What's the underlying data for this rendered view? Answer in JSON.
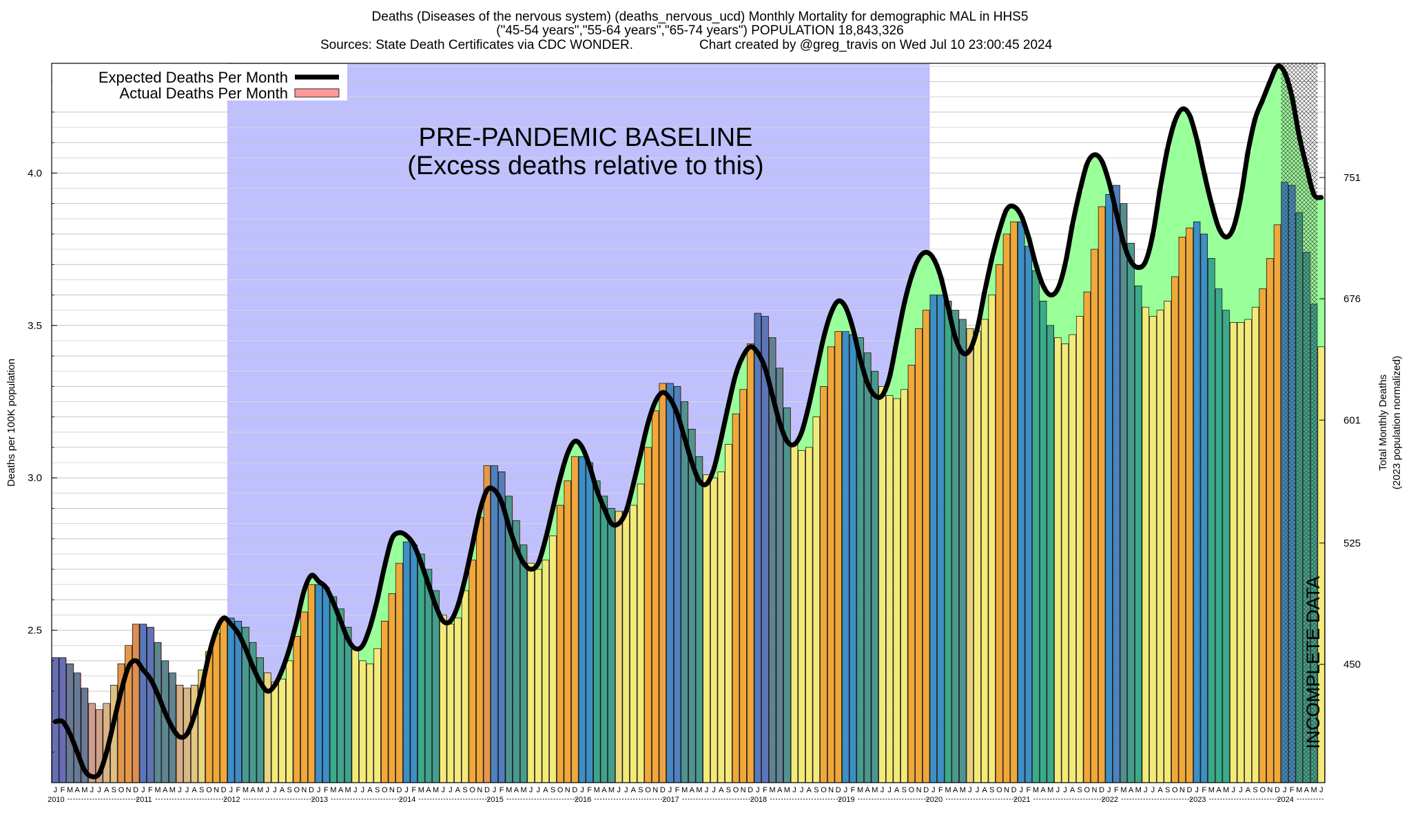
{
  "title": {
    "line1": "Deaths (Diseases of the nervous system) (deaths_nervous_ucd) Monthly Mortality for demographic MAL in HHS5",
    "line2": "(\"45-54 years\",\"55-64 years\",\"65-74 years\") POPULATION 18,843,326",
    "line3_left": "Sources: State Death Certificates via CDC WONDER.",
    "line3_right": "Chart created by @greg_travis on Wed Jul 10 23:00:45 2024"
  },
  "legend": {
    "expected": "Expected Deaths Per Month",
    "actual": "Actual Deaths Per Month"
  },
  "annotations": {
    "baseline_line1": "PRE-PANDEMIC BASELINE",
    "baseline_line2": "(Excess deaths relative to this)",
    "incomplete": "INCOMPLETE DATA"
  },
  "axes": {
    "ylabel_left": "Deaths per 100K population",
    "ylabel_right_line1": "Total Monthly Deaths",
    "ylabel_right_line2": "(2023 population normalized)",
    "yticks_left": [
      "2.5",
      "3.0",
      "3.5",
      "4.0"
    ],
    "yticks_right": [
      "450",
      "525",
      "601",
      "676",
      "751"
    ]
  },
  "colors": {
    "baseline_region": "#c0c0ff",
    "excess_fill": "#99ff99",
    "deficit_fill": "#ff9999",
    "expected_line": "#000000",
    "winter_bar": "#3d8fc4",
    "spring_bar": "#3aaa8a",
    "summer_bar": "#f4ea7a",
    "fall_bar": "#f0a83a"
  },
  "chart_data": {
    "type": "bar",
    "title": "Deaths (Diseases of the nervous system) (deaths_nervous_ucd) Monthly Mortality for demographic MAL in HHS5",
    "xlabel": "",
    "ylabel": "Deaths per 100K population",
    "ylim": [
      2.0,
      4.36
    ],
    "y2label": "Total Monthly Deaths (2023 population normalized)",
    "y2ticks": [
      450,
      525,
      601,
      676,
      751
    ],
    "grid": true,
    "legend_position": "top-left",
    "x_start": "2010-01",
    "month_labels": [
      "J",
      "F",
      "M",
      "A",
      "M",
      "J",
      "J",
      "A",
      "S",
      "O",
      "N",
      "D"
    ],
    "years": [
      "2010",
      "2011",
      "2012",
      "2013",
      "2014",
      "2015",
      "2016",
      "2017",
      "2018",
      "2019",
      "2020",
      "2021",
      "2022",
      "2023",
      "2024"
    ],
    "baseline_period": [
      "2012-01",
      "2019-12"
    ],
    "incomplete_period": [
      "2024-01",
      "2024-05"
    ],
    "series": [
      {
        "name": "Actual Deaths Per Month",
        "values": [
          2.41,
          2.41,
          2.39,
          2.36,
          2.31,
          2.26,
          2.24,
          2.26,
          2.32,
          2.39,
          2.45,
          2.52,
          2.52,
          2.51,
          2.46,
          2.4,
          2.36,
          2.32,
          2.31,
          2.32,
          2.37,
          2.43,
          2.49,
          2.54,
          2.54,
          2.53,
          2.51,
          2.46,
          2.41,
          2.36,
          2.33,
          2.34,
          2.4,
          2.48,
          2.56,
          2.65,
          2.65,
          2.64,
          2.61,
          2.57,
          2.51,
          2.44,
          2.4,
          2.39,
          2.44,
          2.53,
          2.62,
          2.72,
          2.79,
          2.78,
          2.75,
          2.7,
          2.63,
          2.55,
          2.52,
          2.54,
          2.63,
          2.73,
          2.87,
          3.04,
          3.04,
          3.02,
          2.94,
          2.86,
          2.78,
          2.72,
          2.7,
          2.73,
          2.81,
          2.91,
          2.99,
          3.07,
          3.07,
          3.05,
          2.99,
          2.94,
          2.9,
          2.89,
          2.89,
          2.91,
          2.98,
          3.1,
          3.22,
          3.31,
          3.31,
          3.3,
          3.25,
          3.16,
          3.07,
          3.01,
          3.0,
          3.02,
          3.11,
          3.21,
          3.29,
          3.44,
          3.54,
          3.53,
          3.46,
          3.36,
          3.23,
          3.11,
          3.09,
          3.1,
          3.2,
          3.3,
          3.43,
          3.48,
          3.48,
          3.47,
          3.46,
          3.41,
          3.35,
          3.3,
          3.27,
          3.26,
          3.29,
          3.37,
          3.49,
          3.55,
          3.6,
          3.6,
          3.58,
          3.55,
          3.52,
          3.49,
          3.48,
          3.52,
          3.6,
          3.7,
          3.8,
          3.84,
          3.84,
          3.76,
          3.68,
          3.58,
          3.5,
          3.46,
          3.44,
          3.47,
          3.53,
          3.61,
          3.75,
          3.89,
          3.93,
          3.96,
          3.9,
          3.77,
          3.63,
          3.56,
          3.53,
          3.55,
          3.58,
          3.66,
          3.79,
          3.82,
          3.84,
          3.8,
          3.72,
          3.62,
          3.55,
          3.51,
          3.51,
          3.52,
          3.56,
          3.62,
          3.72,
          3.83,
          3.97,
          3.96,
          3.87,
          3.74,
          3.57,
          3.43
        ]
      },
      {
        "name": "Expected Deaths Per Month",
        "values": [
          2.2,
          2.2,
          2.16,
          2.1,
          2.04,
          2.02,
          2.03,
          2.1,
          2.2,
          2.3,
          2.38,
          2.4,
          2.37,
          2.34,
          2.29,
          2.23,
          2.18,
          2.15,
          2.16,
          2.22,
          2.31,
          2.42,
          2.5,
          2.54,
          2.52,
          2.49,
          2.44,
          2.38,
          2.33,
          2.3,
          2.32,
          2.37,
          2.44,
          2.53,
          2.63,
          2.68,
          2.66,
          2.64,
          2.59,
          2.53,
          2.47,
          2.44,
          2.45,
          2.51,
          2.6,
          2.71,
          2.8,
          2.82,
          2.81,
          2.78,
          2.72,
          2.65,
          2.58,
          2.53,
          2.53,
          2.58,
          2.67,
          2.78,
          2.89,
          2.96,
          2.96,
          2.92,
          2.84,
          2.77,
          2.72,
          2.7,
          2.72,
          2.8,
          2.9,
          3.0,
          3.08,
          3.12,
          3.1,
          3.04,
          2.96,
          2.9,
          2.85,
          2.85,
          2.89,
          2.98,
          3.08,
          3.18,
          3.25,
          3.28,
          3.26,
          3.21,
          3.13,
          3.05,
          2.99,
          2.98,
          3.03,
          3.13,
          3.24,
          3.34,
          3.4,
          3.43,
          3.41,
          3.36,
          3.27,
          3.18,
          3.12,
          3.11,
          3.15,
          3.24,
          3.35,
          3.46,
          3.54,
          3.58,
          3.56,
          3.49,
          3.39,
          3.31,
          3.27,
          3.27,
          3.33,
          3.45,
          3.57,
          3.66,
          3.72,
          3.74,
          3.72,
          3.66,
          3.56,
          3.46,
          3.41,
          3.42,
          3.49,
          3.61,
          3.72,
          3.81,
          3.88,
          3.89,
          3.86,
          3.79,
          3.7,
          3.63,
          3.6,
          3.62,
          3.7,
          3.83,
          3.94,
          4.03,
          4.06,
          4.04,
          3.97,
          3.87,
          3.77,
          3.71,
          3.69,
          3.71,
          3.8,
          3.95,
          4.08,
          4.17,
          4.21,
          4.19,
          4.11,
          4.0,
          3.9,
          3.82,
          3.79,
          3.82,
          3.92,
          4.07,
          4.18,
          4.24,
          4.3,
          4.35,
          4.33,
          4.25,
          4.12,
          4.02,
          3.93,
          3.92
        ]
      }
    ]
  }
}
